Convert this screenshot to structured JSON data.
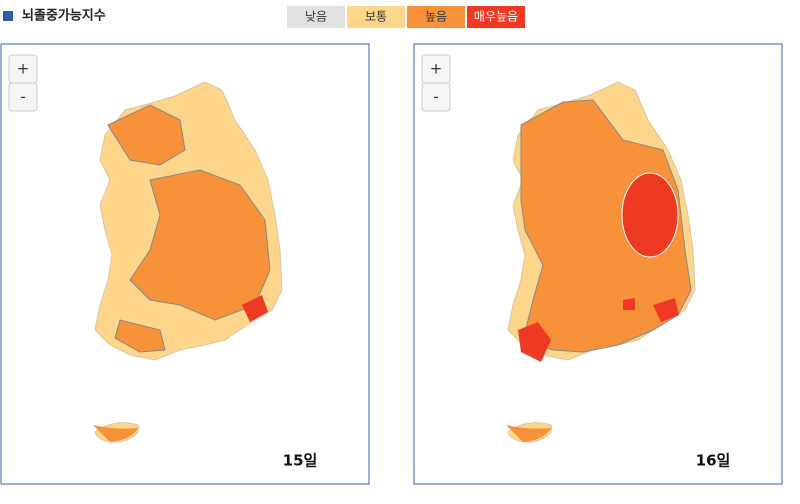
{
  "header": {
    "title": "뇌졸중가능지수"
  },
  "legend": [
    {
      "label": "낮음",
      "color": "#e2e2e2"
    },
    {
      "label": "보통",
      "color": "#fdd68b"
    },
    {
      "label": "높음",
      "color": "#f7923a"
    },
    {
      "label": "매우높음",
      "color": "#ee3a22"
    }
  ],
  "maps": [
    {
      "zoom_in": "+",
      "zoom_out": "-",
      "day": "15일"
    },
    {
      "zoom_in": "+",
      "zoom_out": "-",
      "day": "16일"
    }
  ]
}
